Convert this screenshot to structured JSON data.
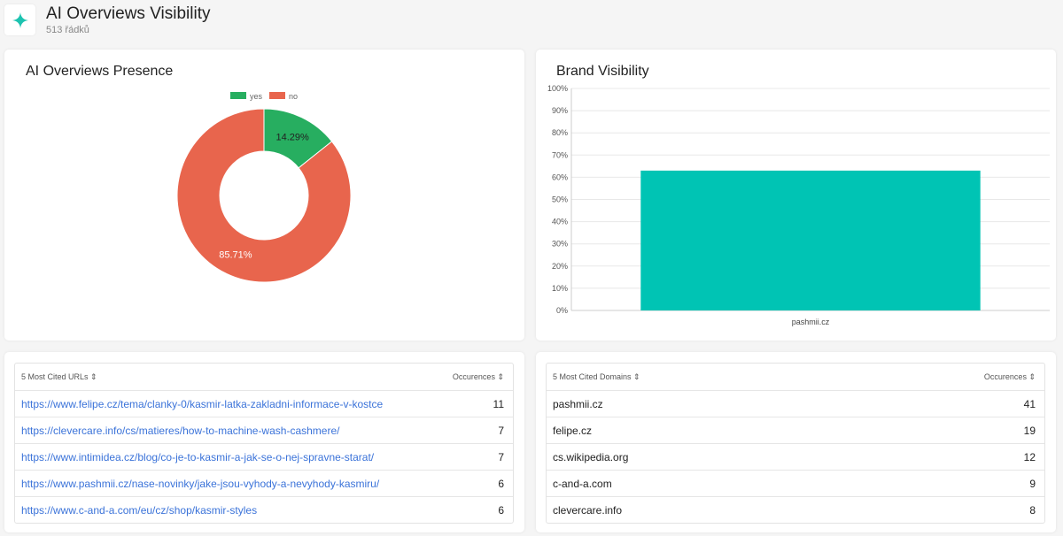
{
  "header": {
    "title": "AI Overviews Visibility",
    "subtitle": "513 řádků",
    "icon": "sparkle-icon"
  },
  "presence": {
    "title": "AI Overviews Presence",
    "legend": [
      "yes",
      "no"
    ],
    "chart_data": {
      "type": "pie",
      "categories": [
        "yes",
        "no"
      ],
      "values": [
        14.29,
        85.71
      ],
      "labels": [
        "14.29%",
        "85.71%"
      ],
      "colors": [
        "#27ae60",
        "#e8654d"
      ]
    }
  },
  "brand": {
    "title": "Brand Visibility",
    "chart_data": {
      "type": "bar",
      "categories": [
        "pashmii.cz"
      ],
      "values": [
        63
      ],
      "ylim": [
        0,
        100
      ],
      "yticks": [
        "0%",
        "10%",
        "20%",
        "30%",
        "40%",
        "50%",
        "60%",
        "70%",
        "80%",
        "90%",
        "100%"
      ],
      "color": "#00c4b4"
    }
  },
  "urls": {
    "col1": "5 Most Cited URLs",
    "col2": "Occurences",
    "rows": [
      {
        "name": "https://www.felipe.cz/tema/clanky-0/kasmir-latka-zakladni-informace-v-kostce",
        "count": "11"
      },
      {
        "name": "https://clevercare.info/cs/matieres/how-to-machine-wash-cashmere/",
        "count": "7"
      },
      {
        "name": "https://www.intimidea.cz/blog/co-je-to-kasmir-a-jak-se-o-nej-spravne-starat/",
        "count": "7"
      },
      {
        "name": "https://www.pashmii.cz/nase-novinky/jake-jsou-vyhody-a-nevyhody-kasmiru/",
        "count": "6"
      },
      {
        "name": "https://www.c-and-a.com/eu/cz/shop/kasmir-styles",
        "count": "6"
      }
    ]
  },
  "domains": {
    "col1": "5 Most Cited Domains",
    "col2": "Occurences",
    "rows": [
      {
        "name": "pashmii.cz",
        "count": "41"
      },
      {
        "name": "felipe.cz",
        "count": "19"
      },
      {
        "name": "cs.wikipedia.org",
        "count": "12"
      },
      {
        "name": "c-and-a.com",
        "count": "9"
      },
      {
        "name": "clevercare.info",
        "count": "8"
      }
    ]
  }
}
